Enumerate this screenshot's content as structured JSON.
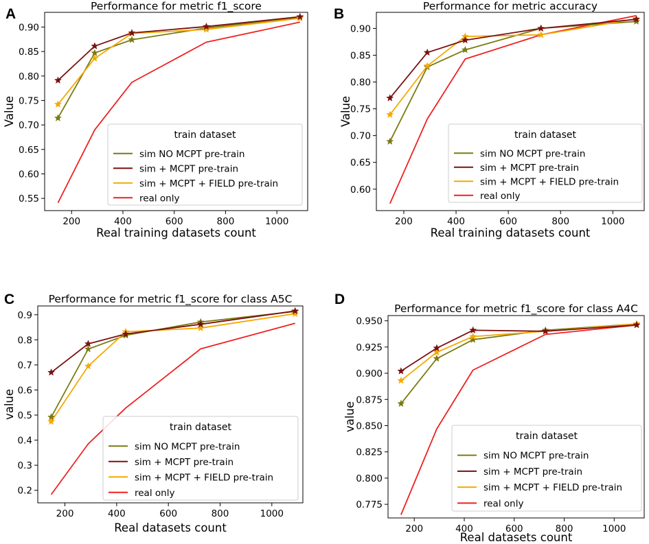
{
  "chart_data": [
    {
      "panel_label": "A",
      "type": "line",
      "title": "Performance for metric f1_score",
      "xlabel": "Real training datasets count",
      "ylabel": "Value",
      "xlim": [
        95,
        1120
      ],
      "ylim": [
        0.525,
        0.93
      ],
      "xticks": [
        200,
        400,
        600,
        800,
        1000
      ],
      "yticks": [
        0.55,
        0.6,
        0.65,
        0.7,
        0.75,
        0.8,
        0.85,
        0.9
      ],
      "ytick_labels": [
        "0.55",
        "0.60",
        "0.65",
        "0.70",
        "0.75",
        "0.80",
        "0.85",
        "0.90"
      ],
      "legend_title": "train dataset",
      "legend_position": "lower-right",
      "series": [
        {
          "name": "sim NO MCPT pre-train",
          "color": "#7a7a10",
          "marker": "star",
          "x": [
            147,
            290,
            435,
            725,
            1090
          ],
          "y": [
            0.714,
            0.847,
            0.874,
            0.898,
            0.92
          ]
        },
        {
          "name": "sim + MCPT pre-train",
          "color": "#7a1010",
          "marker": "star",
          "x": [
            147,
            290,
            435,
            725,
            1090
          ],
          "y": [
            0.791,
            0.861,
            0.888,
            0.901,
            0.921
          ]
        },
        {
          "name": "sim + MCPT + FIELD pre-train",
          "color": "#f5a800",
          "marker": "star",
          "x": [
            147,
            290,
            435,
            725,
            1090
          ],
          "y": [
            0.742,
            0.836,
            0.887,
            0.895,
            0.918
          ]
        },
        {
          "name": "real only",
          "color": "#ee2020",
          "marker": "none",
          "x": [
            147,
            290,
            435,
            725,
            1090
          ],
          "y": [
            0.541,
            0.69,
            0.787,
            0.869,
            0.91
          ]
        }
      ]
    },
    {
      "panel_label": "B",
      "type": "line",
      "title": "Performance for metric accuracy",
      "xlabel": "Real training datasets count",
      "ylabel": "Value",
      "xlim": [
        95,
        1120
      ],
      "ylim": [
        0.56,
        0.93
      ],
      "xticks": [
        200,
        400,
        600,
        800,
        1000
      ],
      "yticks": [
        0.6,
        0.65,
        0.7,
        0.75,
        0.8,
        0.85,
        0.9
      ],
      "ytick_labels": [
        "0.60",
        "0.65",
        "0.70",
        "0.75",
        "0.80",
        "0.85",
        "0.90"
      ],
      "legend_title": "train dataset",
      "legend_position": "lower-right",
      "series": [
        {
          "name": "sim NO MCPT pre-train",
          "color": "#7a7a10",
          "marker": "star",
          "x": [
            147,
            290,
            435,
            725,
            1090
          ],
          "y": [
            0.689,
            0.828,
            0.86,
            0.9,
            0.913
          ]
        },
        {
          "name": "sim + MCPT pre-train",
          "color": "#7a1010",
          "marker": "star",
          "x": [
            147,
            290,
            435,
            725,
            1090
          ],
          "y": [
            0.77,
            0.855,
            0.878,
            0.9,
            0.917
          ]
        },
        {
          "name": "sim + MCPT + FIELD pre-train",
          "color": "#f5a800",
          "marker": "star",
          "x": [
            147,
            290,
            435,
            725,
            1090
          ],
          "y": [
            0.739,
            0.83,
            0.885,
            0.888,
            0.918
          ]
        },
        {
          "name": "real only",
          "color": "#ee2020",
          "marker": "none",
          "x": [
            147,
            290,
            435,
            725,
            1090
          ],
          "y": [
            0.573,
            0.731,
            0.843,
            0.888,
            0.924
          ]
        }
      ]
    },
    {
      "panel_label": "C",
      "type": "line",
      "title": "Performance for metric f1_score for class A5C",
      "xlabel": "Real datasets count",
      "ylabel": "value",
      "xlim": [
        95,
        1120
      ],
      "ylim": [
        0.15,
        0.935
      ],
      "xticks": [
        200,
        400,
        600,
        800,
        1000
      ],
      "yticks": [
        0.2,
        0.3,
        0.4,
        0.5,
        0.6,
        0.7,
        0.8,
        0.9
      ],
      "ytick_labels": [
        "0.2",
        "0.3",
        "0.4",
        "0.5",
        "0.6",
        "0.7",
        "0.8",
        "0.9"
      ],
      "legend_title": "train dataset",
      "legend_position": "lower-right",
      "series": [
        {
          "name": "sim NO MCPT pre-train",
          "color": "#7a7a10",
          "marker": "star",
          "x": [
            147,
            290,
            435,
            725,
            1090
          ],
          "y": [
            0.492,
            0.763,
            0.818,
            0.871,
            0.913
          ]
        },
        {
          "name": "sim + MCPT pre-train",
          "color": "#7a1010",
          "marker": "star",
          "x": [
            147,
            290,
            435,
            725,
            1090
          ],
          "y": [
            0.67,
            0.784,
            0.823,
            0.862,
            0.915
          ]
        },
        {
          "name": "sim + MCPT + FIELD pre-train",
          "color": "#f5a800",
          "marker": "star",
          "x": [
            147,
            290,
            435,
            725,
            1090
          ],
          "y": [
            0.474,
            0.695,
            0.832,
            0.847,
            0.904
          ]
        },
        {
          "name": "real only",
          "color": "#ee2020",
          "marker": "none",
          "x": [
            147,
            290,
            435,
            725,
            1090
          ],
          "y": [
            0.183,
            0.385,
            0.528,
            0.764,
            0.866
          ]
        }
      ]
    },
    {
      "panel_label": "D",
      "type": "line",
      "title": "Performance for metric f1_score for class A4C",
      "xlabel": "Real datasets count",
      "ylabel": "value",
      "xlim": [
        95,
        1120
      ],
      "ylim": [
        0.762,
        0.955
      ],
      "xticks": [
        200,
        400,
        600,
        800,
        1000
      ],
      "yticks": [
        0.775,
        0.8,
        0.825,
        0.85,
        0.875,
        0.9,
        0.925,
        0.95
      ],
      "ytick_labels": [
        "0.775",
        "0.800",
        "0.825",
        "0.850",
        "0.875",
        "0.900",
        "0.925",
        "0.950"
      ],
      "legend_title": "train dataset",
      "legend_position": "lower-right",
      "series": [
        {
          "name": "sim NO MCPT pre-train",
          "color": "#7a7a10",
          "marker": "star",
          "x": [
            147,
            290,
            435,
            725,
            1090
          ],
          "y": [
            0.871,
            0.914,
            0.932,
            0.941,
            0.947
          ]
        },
        {
          "name": "sim + MCPT pre-train",
          "color": "#7a1010",
          "marker": "star",
          "x": [
            147,
            290,
            435,
            725,
            1090
          ],
          "y": [
            0.902,
            0.924,
            0.941,
            0.94,
            0.946
          ]
        },
        {
          "name": "sim + MCPT + FIELD pre-train",
          "color": "#f5a800",
          "marker": "star",
          "x": [
            147,
            290,
            435,
            725,
            1090
          ],
          "y": [
            0.893,
            0.92,
            0.935,
            0.94,
            0.947
          ]
        },
        {
          "name": "real only",
          "color": "#ee2020",
          "marker": "none",
          "x": [
            147,
            290,
            435,
            725,
            1090
          ],
          "y": [
            0.765,
            0.847,
            0.903,
            0.937,
            0.946
          ]
        }
      ]
    }
  ]
}
